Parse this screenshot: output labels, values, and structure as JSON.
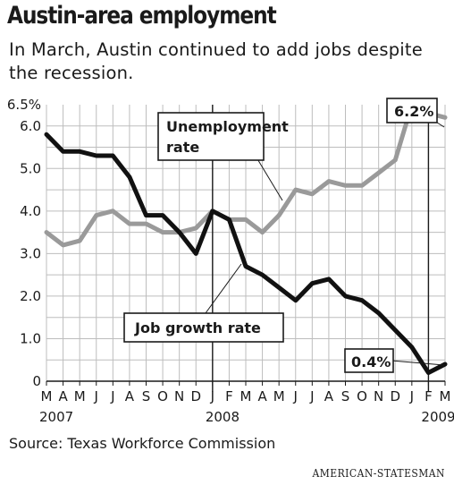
{
  "title": "Austin-area employment",
  "subtitle": "In March, Austin continued to add jobs despite the recession.",
  "source": "Source: Texas Workforce Commission",
  "credit": "AMERICAN-STATESMAN",
  "colors": {
    "unemployment": "#9a9a9a",
    "job_growth": "#111111",
    "grid": "#bdbdbd"
  },
  "chart_data": {
    "type": "line",
    "title": "Austin-area employment",
    "subtitle": "In March, Austin continued to add jobs despite the recession.",
    "xlabel": "",
    "ylabel": "",
    "ylim": [
      0,
      6.5
    ],
    "yticks": [
      {
        "value": 0,
        "label": "0"
      },
      {
        "value": 1,
        "label": "1.0"
      },
      {
        "value": 2,
        "label": "2.0"
      },
      {
        "value": 3,
        "label": "3.0"
      },
      {
        "value": 4,
        "label": "4.0"
      },
      {
        "value": 5,
        "label": "5.0"
      },
      {
        "value": 6,
        "label": "6.0"
      },
      {
        "value": 6.5,
        "label": "6.5%"
      }
    ],
    "categories": [
      "M",
      "A",
      "M",
      "J",
      "J",
      "A",
      "S",
      "O",
      "N",
      "D",
      "J",
      "F",
      "M",
      "A",
      "M",
      "J",
      "J",
      "A",
      "S",
      "O",
      "N",
      "D",
      "J",
      "F",
      "M"
    ],
    "years": [
      {
        "label": "2007",
        "index": 0
      },
      {
        "label": "2008",
        "index": 10
      },
      {
        "label": "2009",
        "index": 23
      }
    ],
    "grid": true,
    "series": [
      {
        "name": "Unemployment rate",
        "key": "unemployment",
        "values": [
          3.5,
          3.2,
          3.3,
          3.9,
          4.0,
          3.7,
          3.7,
          3.5,
          3.5,
          3.6,
          4.0,
          3.8,
          3.8,
          3.5,
          3.9,
          4.5,
          4.4,
          4.7,
          4.6,
          4.6,
          4.9,
          5.2,
          6.5,
          6.3,
          6.2
        ]
      },
      {
        "name": "Job growth rate",
        "key": "job_growth",
        "values": [
          5.8,
          5.4,
          5.4,
          5.3,
          5.3,
          4.8,
          3.9,
          3.9,
          3.5,
          3.0,
          4.0,
          3.8,
          2.7,
          2.5,
          2.2,
          1.9,
          2.3,
          2.4,
          2.0,
          1.9,
          1.6,
          1.2,
          0.8,
          0.2,
          0.4
        ]
      }
    ],
    "annotations": [
      {
        "text": "Unemployment rate",
        "line1": "Unemployment",
        "line2": "rate",
        "series": "unemployment"
      },
      {
        "text": "Job growth rate",
        "series": "job_growth"
      },
      {
        "text": "6.2%",
        "series": "unemployment"
      },
      {
        "text": "0.4%",
        "series": "job_growth"
      }
    ]
  }
}
